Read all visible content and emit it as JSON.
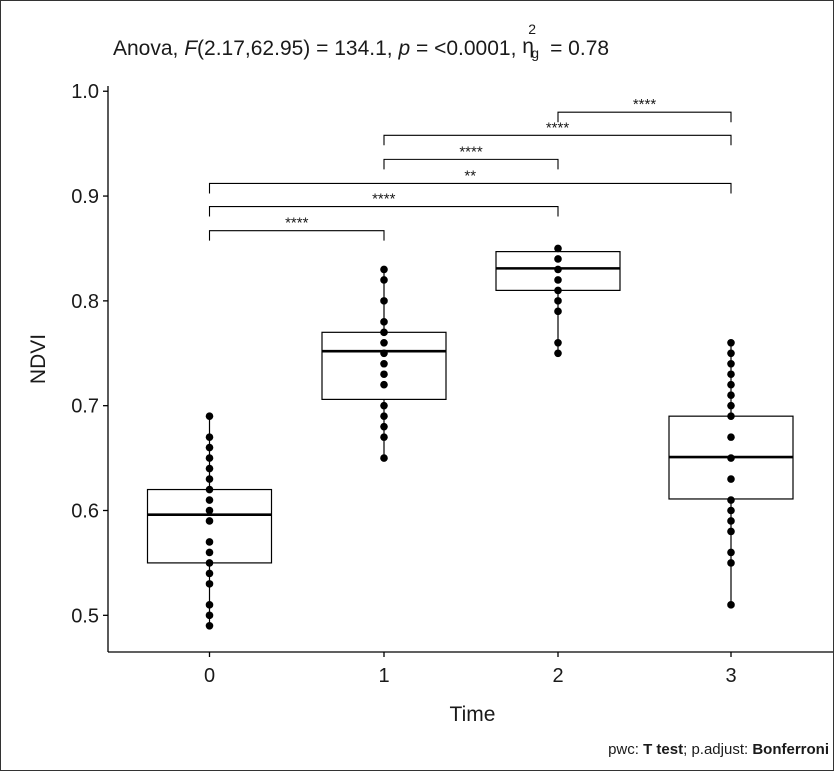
{
  "chart_data": {
    "type": "box",
    "title": {
      "prefix": "Anova, ",
      "f_italic": "F",
      "f_value": "(2.17,62.95) = 134.1, ",
      "p_italic": "p",
      "p_value": " = <0.0001, ",
      "eta_symbol": "η",
      "eta_sup": "2",
      "eta_sub": "g",
      "eta_value": " = 0.78"
    },
    "xlabel": "Time",
    "ylabel": "NDVI",
    "ylim": [
      0.465,
      1.005
    ],
    "yticks": [
      "0.5",
      "0.6",
      "0.7",
      "0.8",
      "0.9",
      "1.0"
    ],
    "categories": [
      "0",
      "1",
      "2",
      "3"
    ],
    "boxes": [
      {
        "category": "0",
        "q1": 0.55,
        "median": 0.596,
        "q3": 0.62,
        "whisker_low": 0.49,
        "whisker_high": 0.69,
        "points": [
          0.49,
          0.5,
          0.51,
          0.53,
          0.54,
          0.55,
          0.56,
          0.57,
          0.59,
          0.6,
          0.61,
          0.62,
          0.63,
          0.64,
          0.65,
          0.66,
          0.67,
          0.69
        ]
      },
      {
        "category": "1",
        "q1": 0.706,
        "median": 0.752,
        "q3": 0.77,
        "whisker_low": 0.65,
        "whisker_high": 0.83,
        "points": [
          0.65,
          0.67,
          0.68,
          0.69,
          0.7,
          0.72,
          0.73,
          0.74,
          0.75,
          0.76,
          0.77,
          0.78,
          0.8,
          0.82,
          0.83
        ]
      },
      {
        "category": "2",
        "q1": 0.81,
        "median": 0.831,
        "q3": 0.847,
        "whisker_low": 0.75,
        "whisker_high": 0.85,
        "points": [
          0.75,
          0.76,
          0.79,
          0.8,
          0.81,
          0.82,
          0.83,
          0.84,
          0.85
        ]
      },
      {
        "category": "3",
        "q1": 0.611,
        "median": 0.651,
        "q3": 0.69,
        "whisker_low": 0.51,
        "whisker_high": 0.76,
        "points": [
          0.51,
          0.55,
          0.56,
          0.58,
          0.59,
          0.6,
          0.61,
          0.63,
          0.65,
          0.67,
          0.69,
          0.7,
          0.71,
          0.72,
          0.73,
          0.74,
          0.75,
          0.76
        ]
      }
    ],
    "comparisons": [
      {
        "group1": "0",
        "group2": "1",
        "y": 0.867,
        "label": "****"
      },
      {
        "group1": "0",
        "group2": "2",
        "y": 0.89,
        "label": "****"
      },
      {
        "group1": "0",
        "group2": "3",
        "y": 0.912,
        "label": "**"
      },
      {
        "group1": "1",
        "group2": "2",
        "y": 0.935,
        "label": "****"
      },
      {
        "group1": "1",
        "group2": "3",
        "y": 0.958,
        "label": "****"
      },
      {
        "group1": "2",
        "group2": "3",
        "y": 0.98,
        "label": "****"
      }
    ],
    "grid": false,
    "legend": "none"
  },
  "footer": {
    "prefix": "pwc: ",
    "test_bold": "T test",
    "middle": "; p.adjust: ",
    "adjust_bold": "Bonferroni"
  }
}
